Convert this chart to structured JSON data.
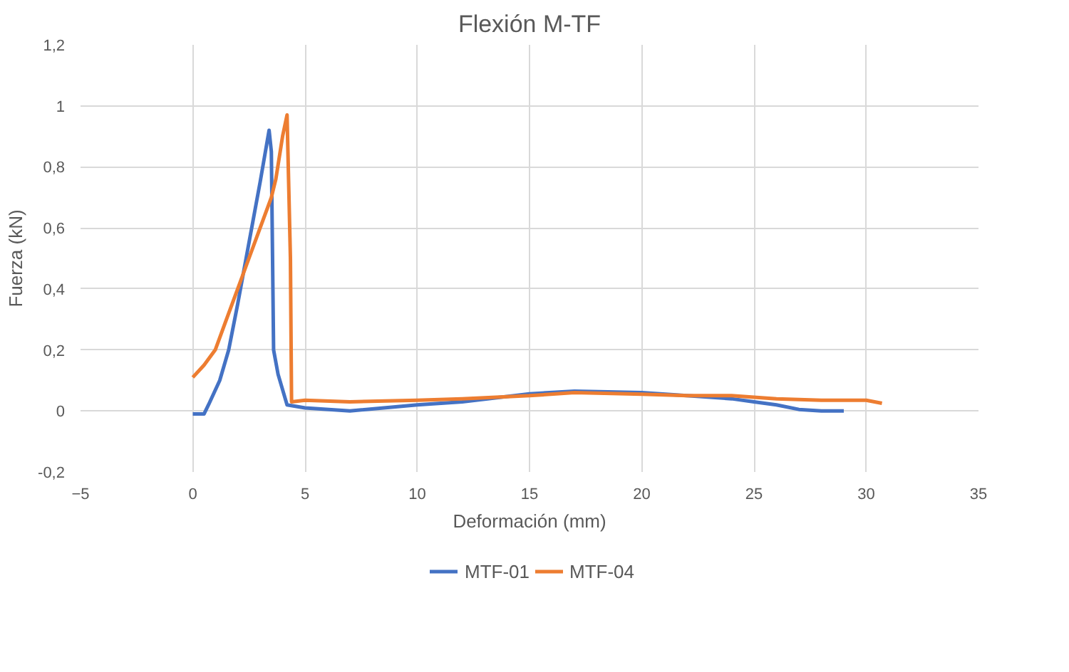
{
  "chart_data": {
    "type": "line",
    "title": "Flexión M-TF",
    "xlabel": "Deformación (mm)",
    "ylabel": "Fuerza (kN)",
    "xlim": [
      -5,
      35
    ],
    "xticks": [
      -5,
      0,
      5,
      10,
      15,
      20,
      25,
      30,
      35
    ],
    "ylim": [
      -0.2,
      1.2
    ],
    "yticks": [
      {
        "value": -0.2,
        "label": "-0,2"
      },
      {
        "value": 0,
        "label": "0"
      },
      {
        "value": 0.2,
        "label": "0,2"
      },
      {
        "value": 0.4,
        "label": "0,4"
      },
      {
        "value": 0.6,
        "label": "0,6"
      },
      {
        "value": 0.8,
        "label": "0,8"
      },
      {
        "value": 1,
        "label": "1"
      },
      {
        "value": 1.2,
        "label": "1,2"
      }
    ],
    "grid": true,
    "legend": "bottom",
    "marker": "none",
    "line_style": "solid",
    "series": [
      {
        "name": "MTF-01",
        "color": "#4472c4",
        "x": [
          0,
          0.5,
          0.7,
          1.2,
          1.6,
          2.0,
          2.5,
          3.0,
          3.4,
          3.5,
          3.6,
          3.8,
          4.2,
          5,
          7,
          10,
          12,
          15,
          17,
          20,
          22,
          24,
          25,
          26,
          27,
          28,
          29
        ],
        "values": [
          -0.01,
          -0.01,
          0.02,
          0.1,
          0.2,
          0.35,
          0.55,
          0.75,
          0.92,
          0.85,
          0.2,
          0.12,
          0.02,
          0.01,
          0.0,
          0.02,
          0.03,
          0.056,
          0.065,
          0.06,
          0.05,
          0.04,
          0.03,
          0.02,
          0.005,
          0.0,
          0.0
        ]
      },
      {
        "name": "MTF-04",
        "color": "#ed7d31",
        "x": [
          0,
          0.5,
          1,
          1.5,
          2,
          2.5,
          3,
          3.5,
          3.7,
          4.0,
          4.2,
          4.35,
          4.4,
          5,
          7,
          10,
          12,
          15,
          17,
          20,
          22,
          24,
          26,
          28,
          30,
          30.7
        ],
        "values": [
          0.11,
          0.15,
          0.2,
          0.3,
          0.4,
          0.5,
          0.6,
          0.7,
          0.76,
          0.9,
          0.97,
          0.5,
          0.03,
          0.035,
          0.03,
          0.035,
          0.04,
          0.05,
          0.06,
          0.055,
          0.05,
          0.05,
          0.04,
          0.035,
          0.035,
          0.025
        ]
      }
    ]
  }
}
